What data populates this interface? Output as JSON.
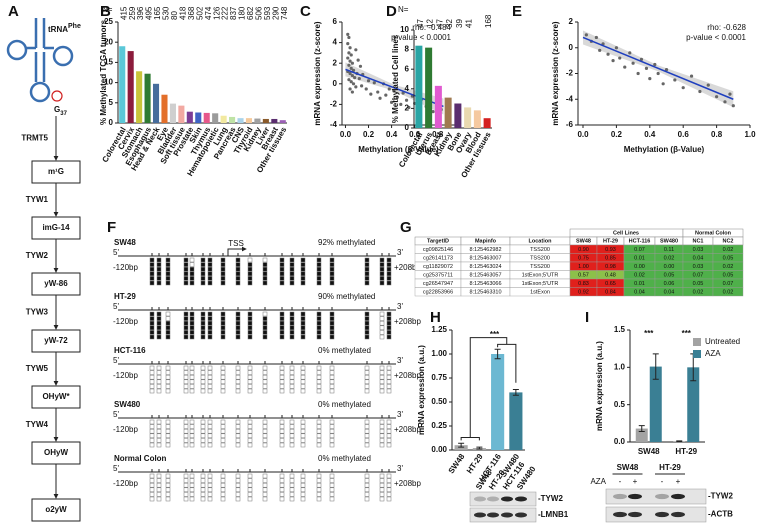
{
  "panel_labels": [
    "A",
    "B",
    "C",
    "D",
    "E",
    "F",
    "G",
    "H",
    "I"
  ],
  "pathway": {
    "trna": "tRNA",
    "trna_sup": "Phe",
    "g": "G",
    "g_sub": "37",
    "enzymes": [
      "TRMT5",
      "TYW1",
      "TYW2",
      "TYW3",
      "TYW5",
      "TYW4"
    ],
    "products": [
      "m¹G",
      "imG-14",
      "yW-86",
      "yW-72",
      "OHyW*",
      "OHyW",
      "o2yW"
    ]
  },
  "chart_data": [
    {
      "type": "bar",
      "ylabel": "% Methylated TCGA tumors",
      "n_label": "N=",
      "n": [
        415,
        259,
        396,
        495,
        165,
        530,
        80,
        418,
        368,
        502,
        474,
        126,
        222,
        837,
        180,
        682,
        506,
        593,
        290,
        748
      ],
      "categories": [
        "Colorectal",
        "Cervix",
        "Stomach",
        "Esophagus",
        "Head & Neck",
        "Eye",
        "Bladder",
        "Soft tissue",
        "Prostate",
        "Skin",
        "Thymus",
        "Hematopoietic",
        "Lung",
        "Pancreas",
        "CNS",
        "Thyroid",
        "Kidney",
        "Liver",
        "Breast",
        "Other tissues"
      ],
      "values": [
        19,
        17.8,
        12.8,
        12.2,
        9.7,
        7,
        4.8,
        4.3,
        2.8,
        2.6,
        2.5,
        2.4,
        1.8,
        1.5,
        1.2,
        1.2,
        1.1,
        1.0,
        1.0,
        0.7
      ],
      "colors": [
        "#5bc8d8",
        "#8c1c3c",
        "#c9c43a",
        "#2f7a32",
        "#466c9c",
        "#e36f2a",
        "#cfcfcf",
        "#f2a9a2",
        "#7c3d96",
        "#3f63c4",
        "#e6578a",
        "#9b9b9b",
        "#f2e9a0",
        "#bfe3a6",
        "#a9d3ea",
        "#f5c99a",
        "#a0a0a0",
        "#8a5a2b",
        "#5a2d6e",
        "#9b5fb5"
      ],
      "ylim": [
        0,
        25
      ],
      "yticks": [
        0,
        5,
        10,
        15,
        20,
        25
      ]
    },
    {
      "type": "scatter",
      "ylabel": "mRNA expression (z-score)",
      "xlabel": "Methylation (β-Value)",
      "annotations": [
        "rho: -0.484",
        "p-value < 0.0001"
      ],
      "x": [
        0.02,
        0.03,
        0.02,
        0.04,
        0.03,
        0.05,
        0.02,
        0.04,
        0.06,
        0.03,
        0.05,
        0.07,
        0.02,
        0.04,
        0.06,
        0.08,
        0.03,
        0.05,
        0.07,
        0.09,
        0.04,
        0.06,
        0.1,
        0.12,
        0.14,
        0.11,
        0.15,
        0.18,
        0.2,
        0.22,
        0.25,
        0.28,
        0.3,
        0.33,
        0.35,
        0.38,
        0.4,
        0.42,
        0.45,
        0.48,
        0.5,
        0.53,
        0.55,
        0.58,
        0.6,
        0.63,
        0.66,
        0.7,
        0.73,
        0.76,
        0.8,
        0.83,
        0.09,
        0.13
      ],
      "y": [
        4.8,
        4.5,
        3.9,
        3.5,
        3.0,
        2.8,
        2.5,
        2.2,
        2.0,
        1.8,
        1.5,
        1.3,
        1.2,
        1.0,
        0.8,
        0.6,
        0.4,
        0.2,
        0.0,
        -0.3,
        -0.5,
        -0.8,
        1.0,
        0.5,
        -0.2,
        2.3,
        0.9,
        -0.5,
        0.3,
        -1.0,
        0.1,
        -0.8,
        -1.4,
        0.0,
        -1.1,
        -0.5,
        -1.8,
        -0.7,
        -1.3,
        -2.0,
        -0.9,
        -1.6,
        -2.3,
        -1.2,
        -1.9,
        -2.6,
        -1.5,
        -2.2,
        -1.8,
        -2.7,
        -2.0,
        -2.5,
        3.3,
        1.7
      ],
      "trend_x": [
        0,
        0.85
      ],
      "trend_y": [
        1.4,
        -2.2
      ],
      "point_color": "#666666",
      "trend_color": "#1f3fbf",
      "xlim": [
        -0.03,
        0.95
      ],
      "xticks": [
        {
          "value": 0,
          "label": "0.0"
        },
        {
          "value": 0.2,
          "label": "0.2"
        },
        {
          "value": 0.4,
          "label": "0.4"
        },
        {
          "value": 0.6,
          "label": "0.6"
        },
        {
          "value": 0.8,
          "label": "0.8"
        }
      ],
      "ylim": [
        -4,
        6
      ],
      "yticks": [
        -4,
        -2,
        0,
        2,
        4,
        6
      ]
    },
    {
      "type": "bar",
      "ylabel": "% Methylated Cell lines",
      "n_label": "N=",
      "n": [
        47,
        12,
        47,
        32,
        39,
        41,
        null,
        168
      ],
      "categories": [
        "Colorectal",
        "Uterus",
        "Breast",
        "Kidney",
        "Bone",
        "Ovary",
        "Blood",
        "Other tissues"
      ],
      "values": [
        8.4,
        8.2,
        4.3,
        3.1,
        2.5,
        2.1,
        1.8,
        1.0
      ],
      "colors": [
        "#2aa5a5",
        "#2f7a32",
        "#e05ad0",
        "#a07a50",
        "#5a2d6e",
        "#e9d9b0",
        "#f5c9a0",
        "#d42020"
      ],
      "ylim": [
        0,
        10
      ],
      "yticks": [
        0,
        2,
        4,
        6,
        8,
        10
      ]
    },
    {
      "type": "scatter",
      "ylabel": "mRNA expression (z-score)",
      "xlabel": "Methylation (β-Value)",
      "annotations": [
        "rho: -0.628",
        "p-value < 0.0001"
      ],
      "x": [
        0.02,
        0.05,
        0.08,
        0.1,
        0.12,
        0.15,
        0.18,
        0.2,
        0.22,
        0.25,
        0.28,
        0.3,
        0.33,
        0.35,
        0.38,
        0.4,
        0.43,
        0.45,
        0.48,
        0.5,
        0.55,
        0.6,
        0.65,
        0.7,
        0.75,
        0.8,
        0.85,
        0.88,
        0.9
      ],
      "y": [
        1.0,
        0.5,
        0.8,
        -0.2,
        0.3,
        -0.5,
        -1.0,
        0.0,
        -0.8,
        -1.5,
        -0.4,
        -1.2,
        -2.0,
        -0.9,
        -1.6,
        -2.4,
        -1.3,
        -2.0,
        -2.8,
        -1.7,
        -2.5,
        -3.1,
        -2.2,
        -3.4,
        -2.9,
        -3.8,
        -4.2,
        -3.6,
        -4.5
      ],
      "trend_x": [
        0,
        0.9
      ],
      "trend_y": [
        0.8,
        -4.0
      ],
      "point_color": "#666666",
      "trend_color": "#1f3fbf",
      "xlim": [
        -0.03,
        1.0
      ],
      "xticks": [
        {
          "value": 0,
          "label": "0.0"
        },
        {
          "value": 0.2,
          "label": "0.2"
        },
        {
          "value": 0.4,
          "label": "0.4"
        },
        {
          "value": 0.6,
          "label": "0.6"
        },
        {
          "value": 0.8,
          "label": "0.8"
        },
        {
          "value": 1,
          "label": "1.0"
        }
      ],
      "ylim": [
        -6,
        2
      ],
      "yticks": [
        -6,
        -4,
        -2,
        0,
        2
      ]
    },
    {
      "type": "bar",
      "ylabel": "mRNA expression (a.u.)",
      "significance": "***",
      "categories": [
        "SW48",
        "HT-29",
        "HCT-116",
        "SW480"
      ],
      "values": [
        0.05,
        0.02,
        1.0,
        0.6
      ],
      "errors": [
        0.02,
        0.01,
        0.05,
        0.03
      ],
      "colors": [
        "#a8a8a8",
        "#a8a8a8",
        "#6cb8d2",
        "#3a7f94"
      ],
      "ylim": [
        0,
        1.25
      ],
      "yticks": [
        {
          "value": 0,
          "label": "0.00"
        },
        {
          "value": 0.25,
          "label": "0.25"
        },
        {
          "value": 0.5,
          "label": "0.50"
        },
        {
          "value": 0.75,
          "label": "0.75"
        },
        {
          "value": 1,
          "label": "1.00"
        },
        {
          "value": 1.25,
          "label": "1.25"
        }
      ]
    },
    {
      "type": "bar",
      "ylabel": "mRNA expression (a.u.)",
      "significance": "***",
      "legend": "top-right",
      "categories": [
        "SW48",
        "HT-29"
      ],
      "series": [
        {
          "name": "Untreated",
          "color": "#a3a3a3",
          "values": [
            0.18,
            0.01
          ],
          "errors": [
            0.04,
            0.005
          ]
        },
        {
          "name": "AZA",
          "color": "#3a7f94",
          "values": [
            1.01,
            1.0
          ],
          "errors": [
            0.17,
            0.18
          ]
        }
      ],
      "ylim": [
        0,
        1.5
      ],
      "yticks": [
        {
          "value": 0,
          "label": "0.0"
        },
        {
          "value": 0.5,
          "label": "0.5"
        },
        {
          "value": 1,
          "label": "1.0"
        },
        {
          "value": 1.5,
          "label": "1.5"
        }
      ]
    }
  ],
  "methylation": {
    "five": "5'",
    "three": "3'",
    "start": "-120bp",
    "end": "+208bp",
    "tss": "TSS",
    "samples": [
      {
        "name": "SW48",
        "label": "92% methylated"
      },
      {
        "name": "HT-29",
        "label": "90% methylated"
      },
      {
        "name": "HCT-116",
        "label": "0% methylated"
      },
      {
        "name": "SW480",
        "label": "0% methylated"
      },
      {
        "name": "Normal Colon",
        "label": "0% methylated"
      }
    ]
  },
  "table": {
    "group_headers": [
      "Cell Lines",
      "Normal Colon"
    ],
    "headers": [
      "TargetID",
      "Mapinfo",
      "Location",
      "SW48",
      "HT-29",
      "HCT-116",
      "SW480",
      "NC1",
      "NC2"
    ],
    "rows": [
      [
        "cg09825146",
        "8:125462982",
        "TSS200",
        "0.90",
        "0.93",
        "0.07",
        "0.11",
        "0.03",
        "0.02"
      ],
      [
        "cg26141173",
        "8:125463007",
        "TSS200",
        "0.75",
        "0.85",
        "0.01",
        "0.02",
        "0.04",
        "0.05"
      ],
      [
        "cg11829072",
        "8:125463024",
        "TSS200",
        "1.00",
        "0.98",
        "0.00",
        "0.00",
        "0.03",
        "0.02"
      ],
      [
        "cg25375711",
        "8:125463057",
        "1stExon;5'UTR",
        "0.57",
        "0.48",
        "0.02",
        "0.05",
        "0.07",
        "0.05"
      ],
      [
        "cg26547947",
        "8:125463066",
        "1stExon;5'UTR",
        "0.83",
        "0.65",
        "0.01",
        "0.06",
        "0.05",
        "0.07"
      ],
      [
        "cg22853966",
        "8:125463310",
        "1stExon",
        "0.92",
        "0.84",
        "0.04",
        "0.04",
        "0.02",
        "0.02"
      ]
    ]
  },
  "blots": {
    "h": {
      "lanes": [
        "SW48",
        "HT-29",
        "HCT-116",
        "SW480"
      ],
      "proteins": [
        "-TYW2",
        "-LMNB1"
      ]
    },
    "i": {
      "groups": [
        "SW48",
        "HT-29"
      ],
      "treatment": "AZA",
      "lanes": [
        "-",
        "+",
        "-",
        "+"
      ],
      "proteins": [
        "-TYW2",
        "-ACTB"
      ]
    }
  }
}
